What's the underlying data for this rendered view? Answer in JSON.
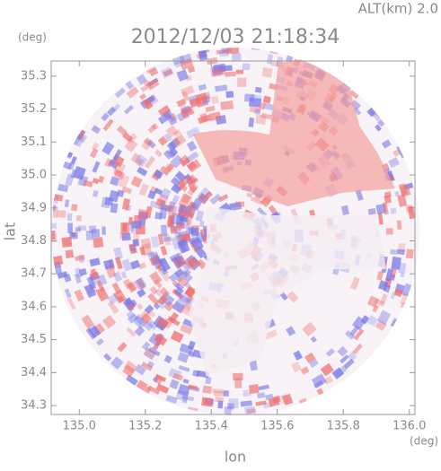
{
  "chart_data": {
    "type": "radar",
    "title": "2012/12/03 21:18:34",
    "subtitle": "ALT(km) 2.0",
    "y_unit": "(deg)",
    "x_unit": "(deg)",
    "xlabel": "lon",
    "ylabel": "lat",
    "xlim": [
      134.915,
      136.017
    ],
    "xticks": [
      {
        "value": 135.0,
        "label": "135.0"
      },
      135.2,
      135.4,
      135.6,
      135.8,
      {
        "value": 136.0,
        "label": "136.0"
      }
    ],
    "ylim": [
      34.273,
      35.346
    ],
    "yticks": [
      34.3,
      34.4,
      34.5,
      34.6,
      34.7,
      34.8,
      34.9,
      {
        "value": 35.0,
        "label": "35.0"
      },
      35.1,
      35.2,
      35.3
    ]
  }
}
